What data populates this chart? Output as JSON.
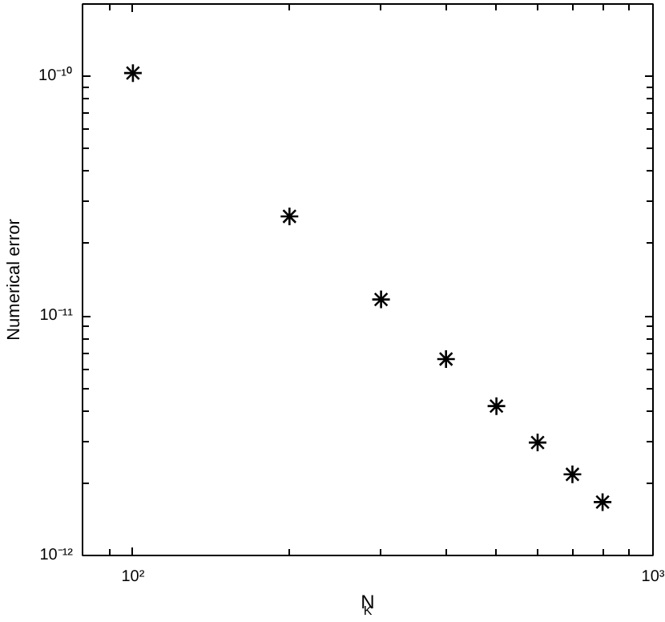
{
  "chart_data": {
    "type": "scatter",
    "xlabel": "N$_{K}$",
    "ylabel": "Numerical error",
    "log": "xy",
    "marker": "cross",
    "grid": false,
    "x": [
      100,
      200,
      300,
      400,
      500,
      600,
      700,
      800
    ],
    "series": [
      {
        "color": "#000000",
        "values": [
          1.03e-10,
          2.6e-11,
          1.17e-11,
          6.6e-12,
          4.2e-12,
          2.96e-12,
          2.18e-12,
          1.67e-12
        ]
      }
    ],
    "xlim": [
      80,
      1000
    ],
    "ylim": [
      1e-12,
      2e-10
    ],
    "xticks": [
      {
        "value": 100,
        "label": "10²"
      },
      {
        "value": 1000,
        "label": "10³"
      }
    ],
    "yticks": [
      {
        "value": 1e-12,
        "label": "10⁻¹²"
      },
      {
        "value": 1e-11,
        "label": "10⁻¹¹"
      },
      {
        "value": 1e-10,
        "label": "10⁻¹⁰"
      }
    ]
  }
}
